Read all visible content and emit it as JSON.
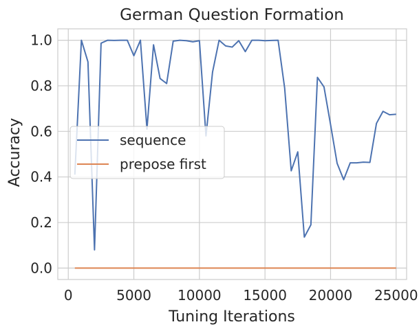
{
  "chart_data": {
    "type": "line",
    "title": "German Question Formation",
    "xlabel": "Tuning Iterations",
    "ylabel": "Accuracy",
    "xlim": [
      -800,
      25800
    ],
    "ylim": [
      -0.05,
      1.05
    ],
    "xticks": [
      0,
      5000,
      10000,
      15000,
      20000,
      25000
    ],
    "yticks": [
      0.0,
      0.2,
      0.4,
      0.6,
      0.8,
      1.0
    ],
    "xtick_labels": [
      "0",
      "5000",
      "10000",
      "15000",
      "20000",
      "25000"
    ],
    "ytick_labels": [
      "0.0",
      "0.2",
      "0.4",
      "0.6",
      "0.8",
      "1.0"
    ],
    "grid": true,
    "legend_position": "center-left",
    "x": [
      500,
      1000,
      1500,
      2000,
      2500,
      3000,
      3500,
      4000,
      4500,
      5000,
      5500,
      6000,
      6500,
      7000,
      7500,
      8000,
      8500,
      9000,
      9500,
      10000,
      10500,
      11000,
      11500,
      12000,
      12500,
      13000,
      13500,
      14000,
      14500,
      15000,
      15500,
      16000,
      16500,
      17000,
      17500,
      18000,
      18500,
      19000,
      19500,
      20000,
      20500,
      21000,
      21500,
      22000,
      22500,
      23000,
      23500,
      24000,
      24500,
      25000
    ],
    "series": [
      {
        "name": "sequence",
        "color": "#4c72b0",
        "values": [
          0.41,
          1.0,
          0.905,
          0.08,
          0.987,
          1.0,
          0.999,
          1.0,
          1.0,
          0.932,
          1.0,
          0.61,
          0.98,
          0.832,
          0.81,
          0.996,
          1.0,
          0.998,
          0.993,
          0.998,
          0.58,
          0.86,
          1.0,
          0.975,
          0.97,
          0.998,
          0.95,
          1.0,
          1.0,
          0.998,
          0.999,
          1.0,
          0.79,
          0.427,
          0.51,
          0.136,
          0.19,
          0.837,
          0.795,
          0.63,
          0.46,
          0.388,
          0.462,
          0.462,
          0.465,
          0.464,
          0.635,
          0.688,
          0.673,
          0.675
        ]
      },
      {
        "name": "prepose first",
        "color": "#dd8452",
        "values": [
          0,
          0,
          0,
          0,
          0,
          0,
          0,
          0,
          0,
          0,
          0,
          0,
          0,
          0,
          0,
          0,
          0,
          0,
          0,
          0,
          0,
          0,
          0,
          0,
          0,
          0,
          0,
          0,
          0,
          0,
          0,
          0,
          0,
          0,
          0,
          0,
          0,
          0,
          0,
          0,
          0,
          0,
          0,
          0,
          0,
          0,
          0,
          0,
          0,
          0
        ]
      }
    ]
  }
}
